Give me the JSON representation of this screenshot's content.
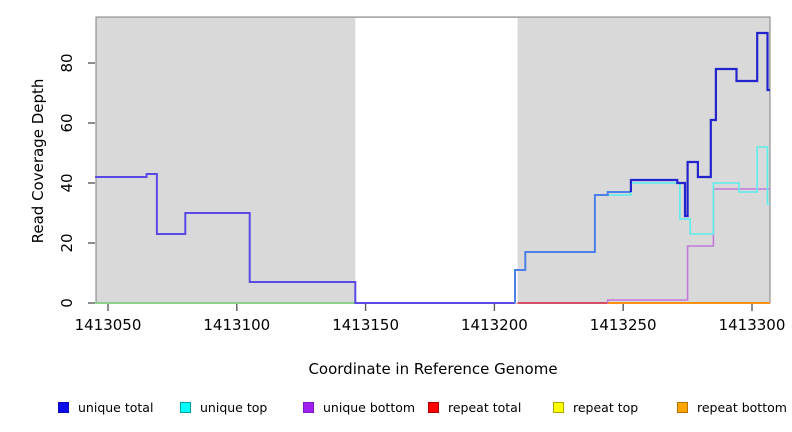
{
  "chart_data": {
    "type": "line",
    "subtype": "step-coverage",
    "title": "",
    "xlabel": "Coordinate in Reference Genome",
    "ylabel": "Read Coverage Depth",
    "x_ticks": [
      1413050,
      1413100,
      1413150,
      1413200,
      1413250,
      1413300
    ],
    "y_ticks": [
      0,
      20,
      40,
      60,
      80
    ],
    "xlim": [
      1413045,
      1413307
    ],
    "ylim": [
      0,
      95
    ],
    "grid": "off",
    "panel_bg": "#d9d9d9",
    "panel_border": "#7f7f7f",
    "gap_region": {
      "start": 1413146,
      "end": 1413209,
      "color": "#ffffff"
    },
    "legend_position": "bottom",
    "legend": [
      {
        "label": "unique total",
        "fill": "#0d0deb",
        "border": "#0a0ab0"
      },
      {
        "label": "unique top",
        "fill": "#00ffff",
        "border": "#009e9e"
      },
      {
        "label": "unique bottom",
        "fill": "#a020f0",
        "border": "#7d18bc"
      },
      {
        "label": "repeat total",
        "fill": "#ff0000",
        "border": "#a80000"
      },
      {
        "label": "repeat top",
        "fill": "#ffff00",
        "border": "#a8a800"
      },
      {
        "label": "repeat bottom",
        "fill": "#ffa500",
        "border": "#b07000"
      }
    ],
    "lines": [
      {
        "name": "zero-line-green",
        "color": "#7ecb7e",
        "width": 1.8,
        "points": [
          [
            1413045,
            0
          ],
          [
            1413146,
            0
          ]
        ]
      },
      {
        "name": "repeat-total-line",
        "color": "#d23752",
        "width": 1.8,
        "points": [
          [
            1413209,
            0
          ],
          [
            1413244,
            0
          ]
        ]
      },
      {
        "name": "repeat-bottom-line",
        "color": "#ff9016",
        "width": 2,
        "points": [
          [
            1413244,
            0
          ],
          [
            1413307,
            0
          ]
        ]
      },
      {
        "name": "unique-bottom-line",
        "color": "#c178da",
        "width": 1.6,
        "points": [
          [
            1413244,
            0
          ],
          [
            1413244,
            1
          ],
          [
            1413275,
            1
          ],
          [
            1413275,
            19
          ],
          [
            1413285,
            19
          ],
          [
            1413285,
            38
          ],
          [
            1413307,
            38
          ]
        ]
      },
      {
        "name": "unique-top-line",
        "color": "#5ceded",
        "width": 1.6,
        "points": [
          [
            1413239,
            36
          ],
          [
            1413253,
            36
          ],
          [
            1413253,
            40
          ],
          [
            1413272,
            40
          ],
          [
            1413272,
            28
          ],
          [
            1413276,
            28
          ],
          [
            1413276,
            23
          ],
          [
            1413285,
            23
          ],
          [
            1413285,
            40
          ],
          [
            1413295,
            40
          ],
          [
            1413295,
            37
          ],
          [
            1413302,
            37
          ],
          [
            1413302,
            52
          ],
          [
            1413306,
            52
          ],
          [
            1413306,
            33
          ],
          [
            1413307,
            33
          ]
        ]
      },
      {
        "name": "unique-total-left-segment",
        "color": "#5b49e6",
        "width": 2,
        "points": [
          [
            1413045,
            42
          ],
          [
            1413065,
            42
          ],
          [
            1413065,
            43
          ],
          [
            1413069,
            43
          ],
          [
            1413069,
            23
          ],
          [
            1413080,
            23
          ],
          [
            1413080,
            30
          ],
          [
            1413105,
            30
          ],
          [
            1413105,
            7
          ],
          [
            1413146,
            7
          ],
          [
            1413146,
            0
          ],
          [
            1413208,
            0
          ]
        ]
      },
      {
        "name": "unique-total-mid-segment",
        "color": "#4a80e8",
        "width": 2,
        "points": [
          [
            1413208,
            0
          ],
          [
            1413208,
            11
          ],
          [
            1413212,
            11
          ],
          [
            1413212,
            17
          ],
          [
            1413239,
            17
          ],
          [
            1413239,
            36
          ],
          [
            1413244,
            36
          ],
          [
            1413244,
            37
          ],
          [
            1413253,
            37
          ]
        ]
      },
      {
        "name": "unique-total-right-segment",
        "color": "#2424cd",
        "width": 2.2,
        "points": [
          [
            1413253,
            37
          ],
          [
            1413253,
            41
          ],
          [
            1413271,
            41
          ],
          [
            1413271,
            40
          ],
          [
            1413274,
            40
          ],
          [
            1413274,
            29
          ],
          [
            1413275,
            29
          ],
          [
            1413275,
            47
          ],
          [
            1413279,
            47
          ],
          [
            1413279,
            42
          ],
          [
            1413284,
            42
          ],
          [
            1413284,
            61
          ],
          [
            1413286,
            61
          ],
          [
            1413286,
            78
          ],
          [
            1413294,
            78
          ],
          [
            1413294,
            74
          ],
          [
            1413302,
            74
          ],
          [
            1413302,
            90
          ],
          [
            1413306,
            90
          ],
          [
            1413306,
            71
          ],
          [
            1413307,
            71
          ]
        ]
      }
    ]
  }
}
